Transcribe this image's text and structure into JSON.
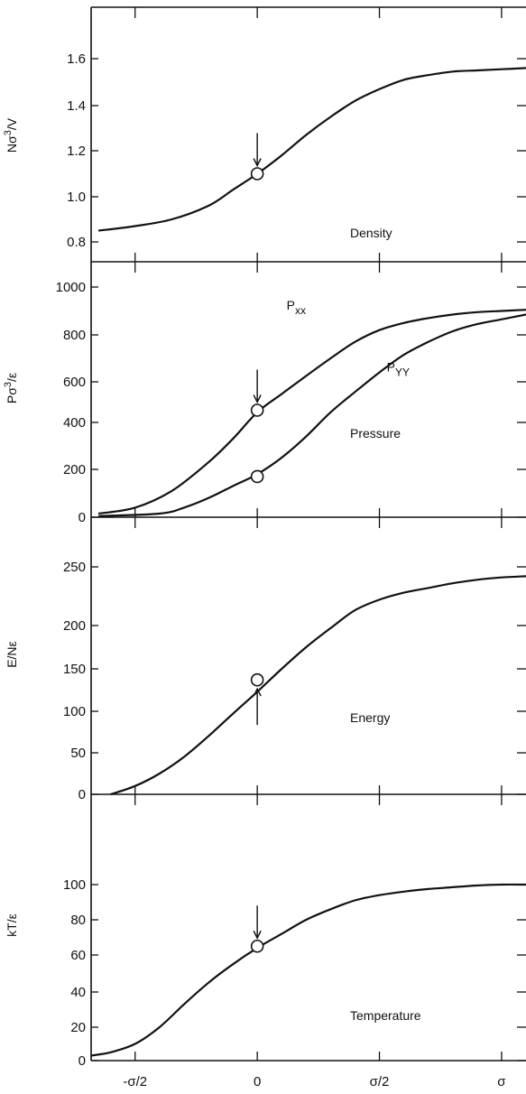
{
  "chart_data": [
    {
      "type": "line",
      "panel_label": "Density",
      "ylabel_parts": {
        "base": "Nσ",
        "sup": "3",
        "tail": "/V"
      },
      "ylim": [
        0.75,
        1.75
      ],
      "yticks": [
        "0.8",
        "1.0",
        "1.2",
        "1.4",
        "1.6"
      ],
      "xticks_top": [
        -0.5,
        0,
        0.5,
        1
      ],
      "series": [
        {
          "x": [
            -0.65,
            -0.5,
            -0.35,
            -0.2,
            -0.1,
            0,
            0.1,
            0.2,
            0.3,
            0.4,
            0.5,
            0.6,
            0.7,
            0.8,
            0.9,
            1.0,
            1.1
          ],
          "y": [
            0.85,
            0.87,
            0.9,
            0.96,
            1.03,
            1.1,
            1.18,
            1.27,
            1.35,
            1.42,
            1.47,
            1.51,
            1.53,
            1.545,
            1.55,
            1.555,
            1.56
          ]
        }
      ],
      "markers": [
        {
          "x": 0,
          "y": 1.1
        }
      ],
      "arrows": [
        {
          "x": 0,
          "direction": "down"
        }
      ]
    },
    {
      "type": "line",
      "panel_label": "Pressure",
      "ylabel_parts": {
        "base": "Pσ",
        "sup": "3",
        "tail": "/ε"
      },
      "ylim": [
        0,
        1000
      ],
      "yticks": [
        "0",
        "200",
        "400",
        "600",
        "800",
        "1000"
      ],
      "series": [
        {
          "name_base": "P",
          "name_sub": "xx",
          "x": [
            -0.65,
            -0.5,
            -0.35,
            -0.2,
            -0.1,
            0,
            0.1,
            0.2,
            0.3,
            0.4,
            0.5,
            0.6,
            0.7,
            0.8,
            0.9,
            1.0,
            1.1
          ],
          "y": [
            15,
            40,
            110,
            230,
            330,
            450,
            540,
            625,
            700,
            770,
            820,
            850,
            870,
            885,
            895,
            900,
            905
          ]
        },
        {
          "name_base": "P",
          "name_sub": "YY",
          "x": [
            -0.65,
            -0.4,
            -0.3,
            -0.2,
            -0.1,
            0,
            0.1,
            0.2,
            0.3,
            0.4,
            0.5,
            0.6,
            0.7,
            0.8,
            0.9,
            1.0,
            1.1
          ],
          "y": [
            5,
            15,
            40,
            80,
            130,
            180,
            250,
            340,
            450,
            550,
            640,
            715,
            770,
            815,
            845,
            865,
            885
          ]
        }
      ],
      "markers": [
        {
          "x": 0,
          "y": 460
        },
        {
          "x": 0,
          "y": 170
        }
      ],
      "arrows": [
        {
          "x": 0,
          "direction": "down"
        }
      ]
    },
    {
      "type": "line",
      "panel_label": "Energy",
      "ylabel": "E/Nε",
      "ylim": [
        0,
        265
      ],
      "yticks": [
        "0",
        "50",
        "100",
        "150",
        "200",
        "250"
      ],
      "series": [
        {
          "x": [
            -0.6,
            -0.5,
            -0.4,
            -0.3,
            -0.2,
            -0.1,
            0,
            0.1,
            0.2,
            0.3,
            0.4,
            0.5,
            0.6,
            0.7,
            0.8,
            0.9,
            1.0,
            1.1
          ],
          "y": [
            0,
            10,
            25,
            45,
            70,
            97,
            123,
            150,
            175,
            197,
            213,
            222,
            228,
            232,
            236,
            239,
            241,
            242
          ]
        }
      ],
      "markers": [
        {
          "x": 0,
          "y": 137
        }
      ],
      "arrows": [
        {
          "x": 0,
          "direction": "up"
        }
      ]
    },
    {
      "type": "line",
      "panel_label": "Temperature",
      "ylabel": "kT/ε",
      "ylim": [
        0,
        107
      ],
      "yticks": [
        "0",
        "20",
        "40",
        "60",
        "80",
        "100"
      ],
      "xlim": [
        -0.68,
        1.1
      ],
      "xticks": [
        "-σ/2",
        "0",
        "σ/2",
        "σ"
      ],
      "xtick_values": [
        -0.5,
        0,
        0.5,
        1
      ],
      "series": [
        {
          "x": [
            -0.68,
            -0.6,
            -0.5,
            -0.4,
            -0.3,
            -0.2,
            -0.1,
            0,
            0.1,
            0.2,
            0.3,
            0.4,
            0.5,
            0.6,
            0.7,
            0.8,
            0.9,
            1.0,
            1.1
          ],
          "y": [
            3,
            5,
            10,
            20,
            33,
            45,
            55,
            64,
            72,
            80,
            86,
            91,
            94,
            96,
            97.5,
            98.5,
            99.5,
            100,
            100
          ]
        }
      ],
      "markers": [
        {
          "x": 0,
          "y": 65
        }
      ],
      "arrows": [
        {
          "x": 0,
          "direction": "down"
        }
      ]
    }
  ]
}
